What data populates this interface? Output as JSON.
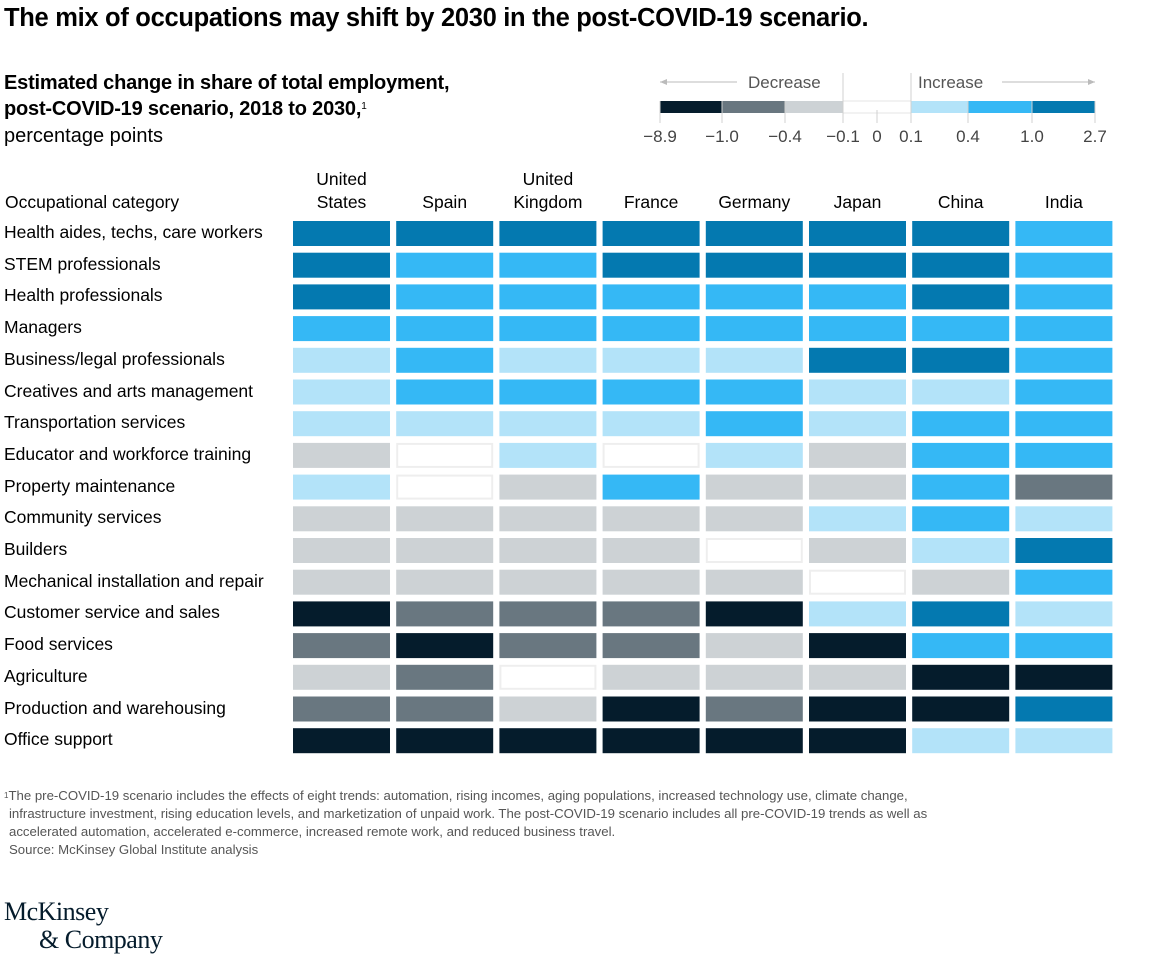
{
  "title": "The mix of occupations may shift by 2030 in the post-COVID-19 scenario.",
  "subtitle_line1": "Estimated change in share of total employment,",
  "subtitle_line2": "post-COVID-19 scenario, 2018 to 2030,",
  "subtitle_footnote_marker": "1",
  "unit": "percentage points",
  "legend": {
    "decrease_label": "Decrease",
    "increase_label": "Increase",
    "ticks": [
      "−8.9",
      "−1.0",
      "−0.4",
      "−0.1",
      "0",
      "0.1",
      "0.4",
      "1.0",
      "2.7"
    ],
    "bins": [
      {
        "range": "-8.9 to -1.0",
        "color": "#051c2c"
      },
      {
        "range": "-1.0 to -0.4",
        "color": "#697780"
      },
      {
        "range": "-0.4 to -0.1",
        "color": "#cdd2d5"
      },
      {
        "range": "-0.1 to 0.1",
        "color": "#ffffff"
      },
      {
        "range": "0.1 to 0.4",
        "color": "#b3e3f9"
      },
      {
        "range": "0.4 to 1.0",
        "color": "#35b8f5"
      },
      {
        "range": "1.0 to 2.7",
        "color": "#0479b0"
      }
    ]
  },
  "chart_data": {
    "type": "heatmap",
    "title": "The mix of occupations may shift by 2030 in the post-COVID-19 scenario.",
    "subtitle": "Estimated change in share of total employment, post-COVID-19 scenario, 2018 to 2030, percentage points",
    "row_header": "Occupational category",
    "columns": [
      [
        "United",
        "States"
      ],
      [
        "Spain"
      ],
      [
        "United",
        "Kingdom"
      ],
      [
        "France"
      ],
      [
        "Germany"
      ],
      [
        "Japan"
      ],
      [
        "China"
      ],
      [
        "India"
      ]
    ],
    "column_names": [
      "United States",
      "Spain",
      "United Kingdom",
      "France",
      "Germany",
      "Japan",
      "China",
      "India"
    ],
    "rows": [
      "Health aides, techs, care workers",
      "STEM professionals",
      "Health professionals",
      "Managers",
      "Business/legal professionals",
      "Creatives and arts management",
      "Transportation services",
      "Educator and workforce training",
      "Property maintenance",
      "Community services",
      "Builders",
      "Mechanical installation and repair",
      "Customer service and sales",
      "Food services",
      "Agriculture",
      "Production and warehousing",
      "Office support"
    ],
    "bin_ranges": [
      "-8.9 to -1.0",
      "-1.0 to -0.4",
      "-0.4 to -0.1",
      "-0.1 to 0.1",
      "0.1 to 0.4",
      "0.4 to 1.0",
      "1.0 to 2.7"
    ],
    "values_bin_index": [
      [
        6,
        6,
        6,
        6,
        6,
        6,
        6,
        5
      ],
      [
        6,
        5,
        5,
        6,
        6,
        6,
        6,
        5
      ],
      [
        6,
        5,
        5,
        5,
        5,
        5,
        6,
        5
      ],
      [
        5,
        5,
        5,
        5,
        5,
        5,
        5,
        5
      ],
      [
        4,
        5,
        4,
        4,
        4,
        6,
        6,
        5
      ],
      [
        4,
        5,
        5,
        5,
        5,
        4,
        4,
        5
      ],
      [
        4,
        4,
        4,
        4,
        5,
        4,
        5,
        5
      ],
      [
        2,
        3,
        4,
        3,
        4,
        2,
        5,
        5
      ],
      [
        4,
        3,
        2,
        5,
        2,
        2,
        5,
        1
      ],
      [
        2,
        2,
        2,
        2,
        2,
        4,
        5,
        4
      ],
      [
        2,
        2,
        2,
        2,
        3,
        2,
        4,
        6
      ],
      [
        2,
        2,
        2,
        2,
        2,
        3,
        2,
        5
      ],
      [
        0,
        1,
        1,
        1,
        0,
        4,
        6,
        4
      ],
      [
        1,
        0,
        1,
        1,
        2,
        0,
        5,
        5
      ],
      [
        2,
        1,
        3,
        2,
        2,
        2,
        0,
        0
      ],
      [
        1,
        1,
        2,
        0,
        1,
        0,
        0,
        6
      ],
      [
        0,
        0,
        0,
        0,
        0,
        0,
        4,
        4
      ]
    ],
    "legend": "top-right"
  },
  "footnote_marker": "1",
  "footnote_lines": [
    "The pre-COVID-19 scenario includes the effects of eight trends: automation, rising incomes, aging populations, increased technology use, climate change,",
    "infrastructure investment, rising education levels, and marketization of unpaid work. The post-COVID-19 scenario includes all pre-COVID-19 trends as well as",
    "accelerated automation, accelerated e-commerce, increased remote work, and reduced business travel."
  ],
  "source": "Source: McKinsey Global Institute analysis",
  "logo_line1": "McKinsey",
  "logo_line2": "& Company"
}
